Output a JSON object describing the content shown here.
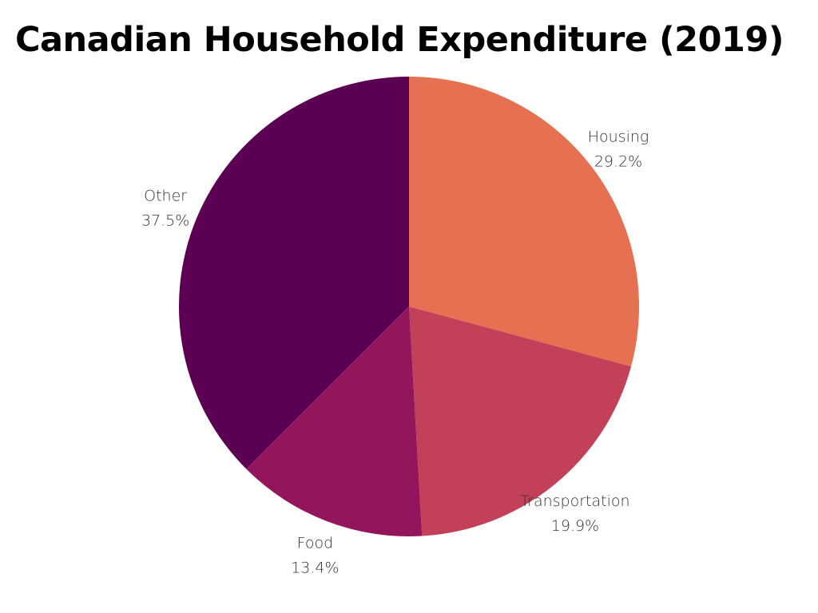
{
  "chart_data": {
    "type": "pie",
    "title": "Canadian Household Expenditure (2019)",
    "slices": [
      {
        "label": "Housing",
        "value": 29.2,
        "value_text": "29.2%",
        "color": "#e57052"
      },
      {
        "label": "Transportation",
        "value": 19.9,
        "value_text": "19.9%",
        "color": "#c24158"
      },
      {
        "label": "Food",
        "value": 13.4,
        "value_text": "13.4%",
        "color": "#93165c"
      },
      {
        "label": "Other",
        "value": 37.5,
        "value_text": "37.5%",
        "color": "#5b0052"
      }
    ],
    "start_angle": "12 o'clock",
    "direction": "clockwise",
    "legend": "none"
  }
}
